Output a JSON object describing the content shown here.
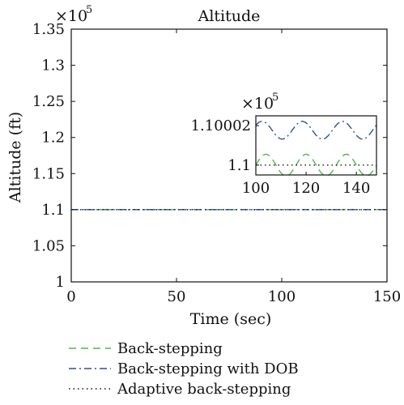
{
  "chart_data": [
    {
      "type": "line",
      "title": "Altitude",
      "xlabel": "Time (sec)",
      "ylabel": "Altitude (ft)",
      "xlim": [
        0,
        150
      ],
      "ylim": [
        1.0,
        1.35
      ],
      "y_exponent_label": "×10",
      "y_exponent_power": "5",
      "xticks": [
        "0",
        "50",
        "100",
        "150"
      ],
      "yticks": [
        "1",
        "1.05",
        "1.1",
        "1.15",
        "1.2",
        "1.25",
        "1.3",
        "1.35"
      ],
      "xtick_values": [
        0,
        50,
        100,
        150
      ],
      "ytick_values": [
        1.0,
        1.05,
        1.1,
        1.15,
        1.2,
        1.25,
        1.3,
        1.35
      ],
      "grid": false,
      "legend_position": "below",
      "series": [
        {
          "name": "Back-stepping",
          "style": "dashed",
          "color": "#4cb84a",
          "x": [
            0,
            150
          ],
          "y": [
            1.1,
            1.1
          ]
        },
        {
          "name": "Back-stepping with DOB",
          "style": "dashdot",
          "color": "#2f4f9f",
          "x": [
            0,
            150
          ],
          "y": [
            1.1,
            1.1
          ]
        },
        {
          "name": "Adaptive back-stepping",
          "style": "dotted",
          "color": "#111111",
          "x": [
            0,
            150
          ],
          "y": [
            1.1,
            1.1
          ]
        }
      ]
    },
    {
      "type": "line",
      "role": "inset",
      "xlim": [
        100,
        148
      ],
      "ylim": [
        1.099995,
        1.100025
      ],
      "y_exponent_label": "×10",
      "y_exponent_power": "5",
      "xticks": [
        "100",
        "120",
        "140"
      ],
      "xtick_values": [
        100,
        120,
        140
      ],
      "yticks": [
        "1.1",
        "1.10002"
      ],
      "ytick_values": [
        1.1,
        1.10002
      ],
      "series": [
        {
          "name": "Back-stepping",
          "style": "dashed",
          "color": "#4cb84a",
          "waveform": {
            "center": 1.1,
            "amplitude": 5.5e-06,
            "period": 16,
            "phase": 0
          }
        },
        {
          "name": "Back-stepping with DOB",
          "style": "dashdot",
          "color": "#2f4f9f",
          "waveform": {
            "center": 1.1000177,
            "amplitude": 4.5e-06,
            "period": 16,
            "phase": 0.6
          }
        },
        {
          "name": "Adaptive back-stepping",
          "style": "dotted",
          "color": "#111111",
          "waveform": {
            "center": 1.1,
            "amplitude": 0.0,
            "period": 16,
            "phase": 0
          }
        }
      ]
    }
  ]
}
